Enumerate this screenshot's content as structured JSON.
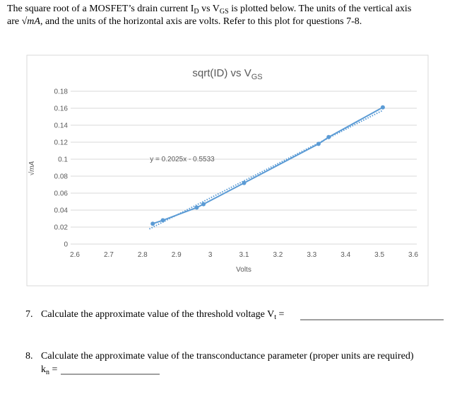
{
  "intro": {
    "line1": [
      "The square root of a MOSFET’s drain current I",
      "D",
      " vs V",
      "GS",
      " is plotted below.  The units of the vertical axis"
    ],
    "line2": [
      "are ",
      "√mA",
      ", and the units of the horizontal axis are volts.  Refer to this plot for questions 7-8."
    ]
  },
  "chart_data": {
    "type": "line",
    "title": "sqrt(ID) vs V",
    "title_sub": "GS",
    "x_label": "Volts",
    "y_label": "√mA",
    "x": [
      2.83,
      2.86,
      2.96,
      2.98,
      3.1,
      3.32,
      3.35,
      3.51
    ],
    "series": [
      {
        "color": "#5b9bd5",
        "values": [
          0.024,
          0.028,
          0.043,
          0.047,
          0.072,
          0.118,
          0.126,
          0.161
        ]
      }
    ],
    "trendline": {
      "label": "y = 0.2025x - 0.5533",
      "x": [
        2.82,
        3.51
      ],
      "values": [
        0.0178,
        0.1575
      ]
    },
    "xlim": [
      2.6,
      3.6
    ],
    "xticks": [
      2.6,
      2.7,
      2.8,
      2.9,
      3,
      3.1,
      3.2,
      3.3,
      3.4,
      3.5,
      3.6
    ],
    "ylim": [
      0,
      0.18
    ],
    "yticks": [
      0,
      0.02,
      0.04,
      0.06,
      0.08,
      0.1,
      0.12,
      0.14,
      0.16,
      0.18
    ],
    "grid": true
  },
  "questions": [
    {
      "number": "7.",
      "text": "Calculate the approximate value of the threshold voltage V",
      "sub": "t",
      "suffix": " ="
    },
    {
      "number": "8.",
      "text": "Calculate the approximate value of the transconductance parameter (proper units are required)",
      "answer_label": "k",
      "answer_sub": "n",
      "suffix": " ="
    }
  ]
}
